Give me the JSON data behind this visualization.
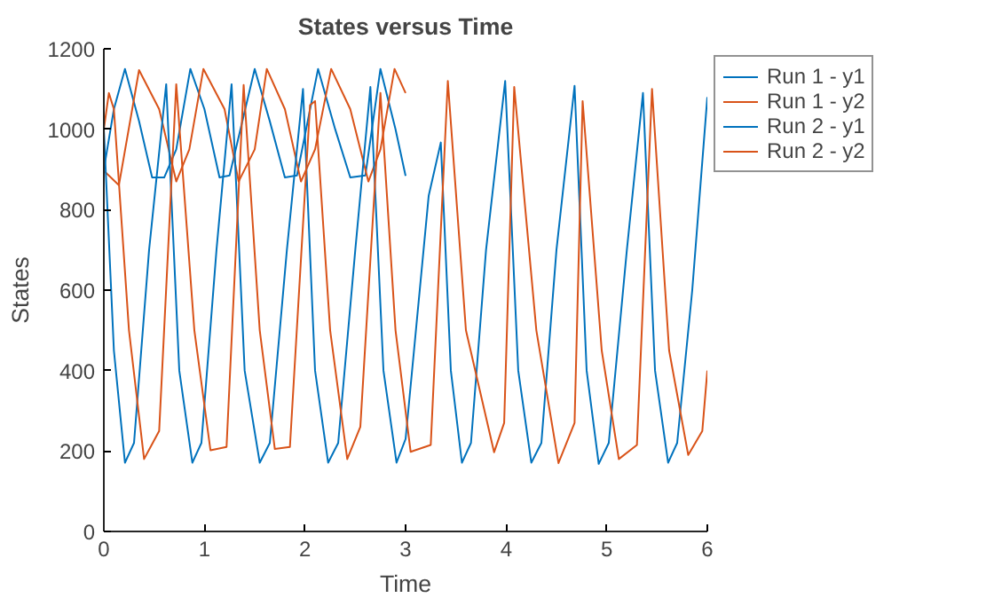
{
  "chart_data": {
    "type": "line",
    "title": "States versus Time",
    "xlabel": "Time",
    "ylabel": "States",
    "xlim": [
      0,
      6
    ],
    "ylim": [
      0,
      1200
    ],
    "xticks": [
      0,
      1,
      2,
      3,
      4,
      5,
      6
    ],
    "yticks": [
      0,
      200,
      400,
      600,
      800,
      1000,
      1200
    ],
    "grid": false,
    "legend": "top right",
    "marker": "none",
    "line_style": "solid",
    "series": [
      {
        "name": "Run 1 - y1",
        "color": "#0072bd",
        "x": [
          0,
          0.1,
          0.21,
          0.35,
          0.48,
          0.6,
          0.72,
          0.86,
          1.0,
          1.15,
          1.25,
          1.5,
          1.65,
          1.8,
          1.92,
          2.13,
          2.3,
          2.45,
          2.6,
          2.75,
          2.9,
          3.0
        ],
        "values": [
          900,
          1050,
          1150,
          1020,
          880,
          880,
          950,
          1150,
          1050,
          880,
          885,
          1150,
          1020,
          880,
          885,
          1150,
          1000,
          880,
          885,
          1150,
          1000,
          884
        ]
      },
      {
        "name": "Run 1 - y2",
        "color": "#d95319",
        "x": [
          0,
          0.15,
          0.35,
          0.55,
          0.72,
          0.85,
          0.99,
          1.2,
          1.34,
          1.5,
          1.62,
          1.8,
          1.96,
          2.1,
          2.26,
          2.45,
          2.63,
          2.75,
          2.89,
          3.0
        ],
        "values": [
          897,
          861,
          1147,
          1050,
          870,
          950,
          1150,
          1050,
          870,
          950,
          1150,
          1050,
          870,
          950,
          1150,
          1050,
          870,
          950,
          1150,
          1090
        ]
      },
      {
        "name": "Run 2 - y1",
        "color": "#0072bd",
        "x": [
          0,
          0.1,
          0.21,
          0.3,
          0.45,
          0.62,
          0.75,
          0.88,
          0.97,
          1.12,
          1.27,
          1.4,
          1.55,
          1.65,
          1.82,
          1.98,
          2.1,
          2.23,
          2.33,
          2.5,
          2.65,
          2.78,
          2.91,
          3.0,
          3.23,
          3.35,
          3.45,
          3.56,
          3.65,
          3.8,
          3.99,
          4.12,
          4.25,
          4.35,
          4.5,
          4.68,
          4.8,
          4.92,
          5.02,
          5.2,
          5.36,
          5.48,
          5.61,
          5.7,
          5.85,
          6.0
        ],
        "values": [
          1000,
          450,
          171,
          220,
          700,
          1112,
          400,
          171,
          220,
          700,
          1112,
          400,
          171,
          220,
          700,
          1100,
          400,
          171,
          220,
          700,
          1105,
          400,
          171,
          230,
          835,
          967,
          400,
          171,
          220,
          700,
          1120,
          400,
          171,
          220,
          700,
          1108,
          400,
          168,
          220,
          700,
          1090,
          400,
          171,
          220,
          600,
          1080
        ]
      },
      {
        "name": "Run 2 - y2",
        "color": "#d95319",
        "x": [
          0,
          0.05,
          0.1,
          0.25,
          0.4,
          0.55,
          0.72,
          0.9,
          1.06,
          1.22,
          1.39,
          1.55,
          1.7,
          1.85,
          2.05,
          2.1,
          2.25,
          2.42,
          2.55,
          2.75,
          2.9,
          3.05,
          3.25,
          3.42,
          3.6,
          3.88,
          3.98,
          4.08,
          4.3,
          4.52,
          4.68,
          4.76,
          4.95,
          5.12,
          5.3,
          5.45,
          5.62,
          5.81,
          5.95,
          6.0
        ],
        "values": [
          1000,
          1090,
          1050,
          500,
          180,
          250,
          1112,
          500,
          202,
          210,
          1110,
          500,
          205,
          210,
          1060,
          1070,
          500,
          180,
          260,
          1090,
          500,
          198,
          215,
          1120,
          500,
          197,
          270,
          1105,
          500,
          170,
          270,
          1070,
          450,
          180,
          215,
          1100,
          450,
          190,
          250,
          400
        ]
      }
    ]
  }
}
